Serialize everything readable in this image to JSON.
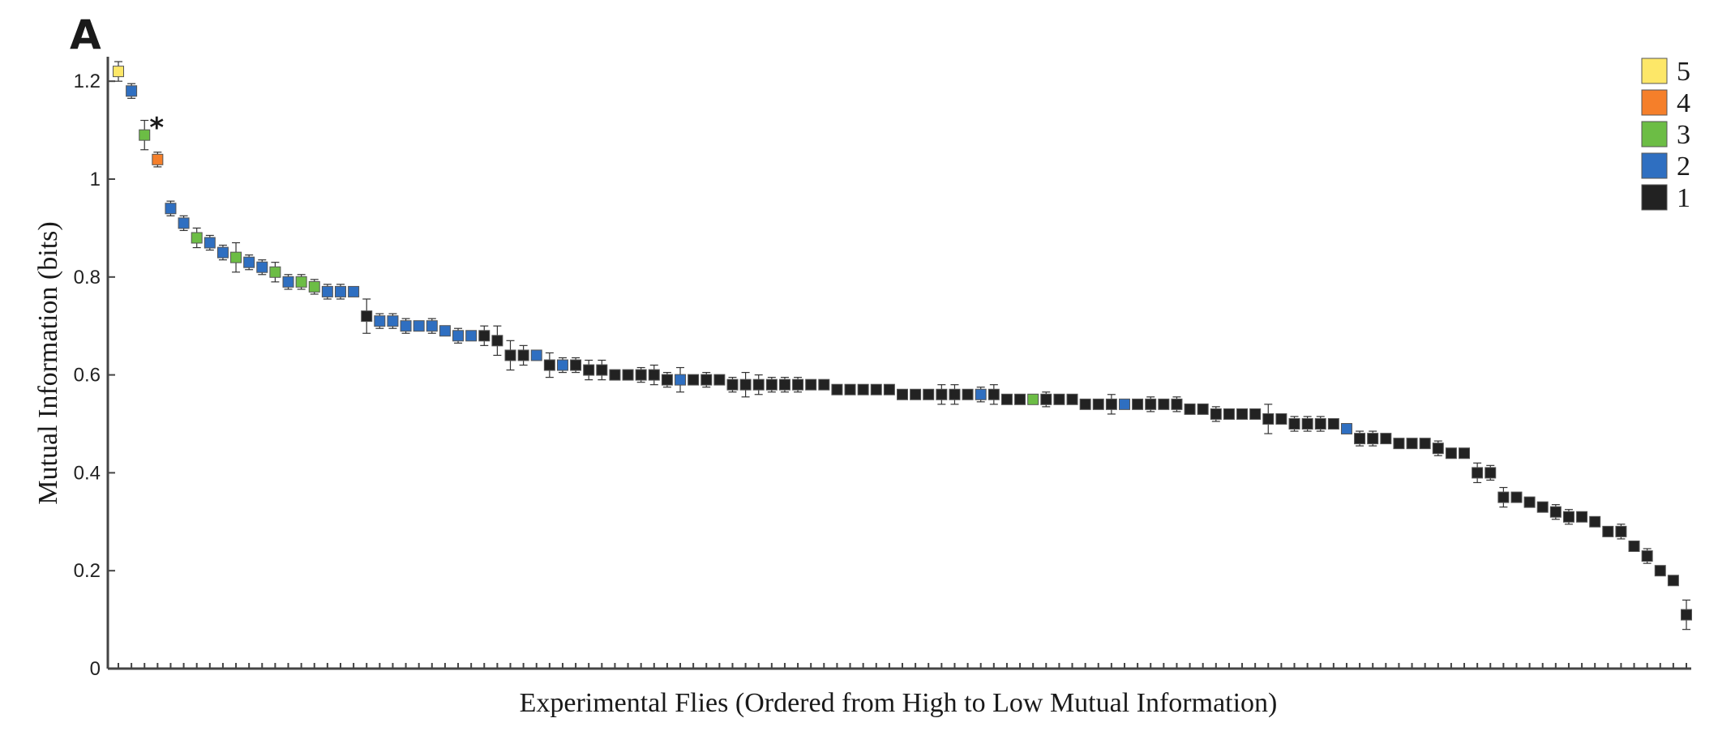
{
  "chart_data": {
    "type": "scatter",
    "panel_label": "A",
    "xlabel": "Experimental Flies (Ordered from High to Low Mutual Information)",
    "ylabel": "Mutual Information (bits)",
    "ylim": [
      0,
      1.25
    ],
    "yticks": [
      {
        "value": 0,
        "label": "0"
      },
      {
        "value": 0.2,
        "label": "0.2"
      },
      {
        "value": 0.4,
        "label": "0.4"
      },
      {
        "value": 0.6,
        "label": "0.6"
      },
      {
        "value": 0.8,
        "label": "0.8"
      },
      {
        "value": 1,
        "label": "1"
      },
      {
        "value": 1.2,
        "label": "1.2"
      }
    ],
    "legend": [
      {
        "label": "5",
        "color": "#fde768"
      },
      {
        "label": "4",
        "color": "#f57f2a"
      },
      {
        "label": "3",
        "color": "#6cbd45"
      },
      {
        "label": "2",
        "color": "#2f6fc1"
      },
      {
        "label": "1",
        "color": "#222222"
      }
    ],
    "colors": {
      "5": "#fde768",
      "4": "#f57f2a",
      "3": "#6cbd45",
      "2": "#2f6fc1",
      "1": "#222222"
    },
    "annotation": {
      "text": "*",
      "index": 3
    },
    "points": [
      {
        "y": 1.22,
        "err": 0.02,
        "g": 5
      },
      {
        "y": 1.18,
        "err": 0.015,
        "g": 2
      },
      {
        "y": 1.09,
        "err": 0.03,
        "g": 3
      },
      {
        "y": 1.04,
        "err": 0.015,
        "g": 4
      },
      {
        "y": 0.94,
        "err": 0.015,
        "g": 2
      },
      {
        "y": 0.91,
        "err": 0.015,
        "g": 2
      },
      {
        "y": 0.88,
        "err": 0.02,
        "g": 3
      },
      {
        "y": 0.87,
        "err": 0.015,
        "g": 2
      },
      {
        "y": 0.85,
        "err": 0.015,
        "g": 2
      },
      {
        "y": 0.84,
        "err": 0.03,
        "g": 3
      },
      {
        "y": 0.83,
        "err": 0.015,
        "g": 2
      },
      {
        "y": 0.82,
        "err": 0.015,
        "g": 2
      },
      {
        "y": 0.81,
        "err": 0.02,
        "g": 3
      },
      {
        "y": 0.79,
        "err": 0.015,
        "g": 2
      },
      {
        "y": 0.79,
        "err": 0.015,
        "g": 3
      },
      {
        "y": 0.78,
        "err": 0.015,
        "g": 3
      },
      {
        "y": 0.77,
        "err": 0.015,
        "g": 2
      },
      {
        "y": 0.77,
        "err": 0.015,
        "g": 2
      },
      {
        "y": 0.77,
        "err": 0.01,
        "g": 2
      },
      {
        "y": 0.72,
        "err": 0.035,
        "g": 1
      },
      {
        "y": 0.71,
        "err": 0.015,
        "g": 2
      },
      {
        "y": 0.71,
        "err": 0.015,
        "g": 2
      },
      {
        "y": 0.7,
        "err": 0.015,
        "g": 2
      },
      {
        "y": 0.7,
        "err": 0.01,
        "g": 2
      },
      {
        "y": 0.7,
        "err": 0.015,
        "g": 2
      },
      {
        "y": 0.69,
        "err": 0.01,
        "g": 2
      },
      {
        "y": 0.68,
        "err": 0.015,
        "g": 2
      },
      {
        "y": 0.68,
        "err": 0.01,
        "g": 2
      },
      {
        "y": 0.68,
        "err": 0.02,
        "g": 1
      },
      {
        "y": 0.67,
        "err": 0.03,
        "g": 1
      },
      {
        "y": 0.64,
        "err": 0.03,
        "g": 1
      },
      {
        "y": 0.64,
        "err": 0.02,
        "g": 1
      },
      {
        "y": 0.64,
        "err": 0.01,
        "g": 2
      },
      {
        "y": 0.62,
        "err": 0.025,
        "g": 1
      },
      {
        "y": 0.62,
        "err": 0.015,
        "g": 2
      },
      {
        "y": 0.62,
        "err": 0.015,
        "g": 1
      },
      {
        "y": 0.61,
        "err": 0.02,
        "g": 1
      },
      {
        "y": 0.61,
        "err": 0.02,
        "g": 1
      },
      {
        "y": 0.6,
        "err": 0.01,
        "g": 1
      },
      {
        "y": 0.6,
        "err": 0.01,
        "g": 1
      },
      {
        "y": 0.6,
        "err": 0.015,
        "g": 1
      },
      {
        "y": 0.6,
        "err": 0.02,
        "g": 1
      },
      {
        "y": 0.59,
        "err": 0.015,
        "g": 1
      },
      {
        "y": 0.59,
        "err": 0.025,
        "g": 2
      },
      {
        "y": 0.59,
        "err": 0.01,
        "g": 1
      },
      {
        "y": 0.59,
        "err": 0.015,
        "g": 1
      },
      {
        "y": 0.59,
        "err": 0.01,
        "g": 1
      },
      {
        "y": 0.58,
        "err": 0.015,
        "g": 1
      },
      {
        "y": 0.58,
        "err": 0.025,
        "g": 1
      },
      {
        "y": 0.58,
        "err": 0.02,
        "g": 1
      },
      {
        "y": 0.58,
        "err": 0.015,
        "g": 1
      },
      {
        "y": 0.58,
        "err": 0.015,
        "g": 1
      },
      {
        "y": 0.58,
        "err": 0.015,
        "g": 1
      },
      {
        "y": 0.58,
        "err": 0.01,
        "g": 1
      },
      {
        "y": 0.58,
        "err": 0.01,
        "g": 1
      },
      {
        "y": 0.57,
        "err": 0.01,
        "g": 1
      },
      {
        "y": 0.57,
        "err": 0.01,
        "g": 1
      },
      {
        "y": 0.57,
        "err": 0.01,
        "g": 1
      },
      {
        "y": 0.57,
        "err": 0.01,
        "g": 1
      },
      {
        "y": 0.57,
        "err": 0.01,
        "g": 1
      },
      {
        "y": 0.56,
        "err": 0.01,
        "g": 1
      },
      {
        "y": 0.56,
        "err": 0.01,
        "g": 1
      },
      {
        "y": 0.56,
        "err": 0.01,
        "g": 1
      },
      {
        "y": 0.56,
        "err": 0.02,
        "g": 1
      },
      {
        "y": 0.56,
        "err": 0.02,
        "g": 1
      },
      {
        "y": 0.56,
        "err": 0.01,
        "g": 1
      },
      {
        "y": 0.56,
        "err": 0.015,
        "g": 2
      },
      {
        "y": 0.56,
        "err": 0.02,
        "g": 1
      },
      {
        "y": 0.55,
        "err": 0.01,
        "g": 1
      },
      {
        "y": 0.55,
        "err": 0.01,
        "g": 1
      },
      {
        "y": 0.55,
        "err": 0.01,
        "g": 3
      },
      {
        "y": 0.55,
        "err": 0.015,
        "g": 1
      },
      {
        "y": 0.55,
        "err": 0.01,
        "g": 1
      },
      {
        "y": 0.55,
        "err": 0.01,
        "g": 1
      },
      {
        "y": 0.54,
        "err": 0.01,
        "g": 1
      },
      {
        "y": 0.54,
        "err": 0.01,
        "g": 1
      },
      {
        "y": 0.54,
        "err": 0.02,
        "g": 1
      },
      {
        "y": 0.54,
        "err": 0.01,
        "g": 2
      },
      {
        "y": 0.54,
        "err": 0.01,
        "g": 1
      },
      {
        "y": 0.54,
        "err": 0.015,
        "g": 1
      },
      {
        "y": 0.54,
        "err": 0.01,
        "g": 1
      },
      {
        "y": 0.54,
        "err": 0.015,
        "g": 1
      },
      {
        "y": 0.53,
        "err": 0.01,
        "g": 1
      },
      {
        "y": 0.53,
        "err": 0.01,
        "g": 1
      },
      {
        "y": 0.52,
        "err": 0.015,
        "g": 1
      },
      {
        "y": 0.52,
        "err": 0.01,
        "g": 1
      },
      {
        "y": 0.52,
        "err": 0.01,
        "g": 1
      },
      {
        "y": 0.52,
        "err": 0.01,
        "g": 1
      },
      {
        "y": 0.51,
        "err": 0.03,
        "g": 1
      },
      {
        "y": 0.51,
        "err": 0.01,
        "g": 1
      },
      {
        "y": 0.5,
        "err": 0.015,
        "g": 1
      },
      {
        "y": 0.5,
        "err": 0.015,
        "g": 1
      },
      {
        "y": 0.5,
        "err": 0.015,
        "g": 1
      },
      {
        "y": 0.5,
        "err": 0.01,
        "g": 1
      },
      {
        "y": 0.49,
        "err": 0.01,
        "g": 2
      },
      {
        "y": 0.47,
        "err": 0.015,
        "g": 1
      },
      {
        "y": 0.47,
        "err": 0.015,
        "g": 1
      },
      {
        "y": 0.47,
        "err": 0.01,
        "g": 1
      },
      {
        "y": 0.46,
        "err": 0.01,
        "g": 1
      },
      {
        "y": 0.46,
        "err": 0.01,
        "g": 1
      },
      {
        "y": 0.46,
        "err": 0.01,
        "g": 1
      },
      {
        "y": 0.45,
        "err": 0.015,
        "g": 1
      },
      {
        "y": 0.44,
        "err": 0.01,
        "g": 1
      },
      {
        "y": 0.44,
        "err": 0.01,
        "g": 1
      },
      {
        "y": 0.4,
        "err": 0.02,
        "g": 1
      },
      {
        "y": 0.4,
        "err": 0.015,
        "g": 1
      },
      {
        "y": 0.35,
        "err": 0.02,
        "g": 1
      },
      {
        "y": 0.35,
        "err": 0.01,
        "g": 1
      },
      {
        "y": 0.34,
        "err": 0.01,
        "g": 1
      },
      {
        "y": 0.33,
        "err": 0.01,
        "g": 1
      },
      {
        "y": 0.32,
        "err": 0.015,
        "g": 1
      },
      {
        "y": 0.31,
        "err": 0.015,
        "g": 1
      },
      {
        "y": 0.31,
        "err": 0.01,
        "g": 1
      },
      {
        "y": 0.3,
        "err": 0.01,
        "g": 1
      },
      {
        "y": 0.28,
        "err": 0.01,
        "g": 1
      },
      {
        "y": 0.28,
        "err": 0.015,
        "g": 1
      },
      {
        "y": 0.25,
        "err": 0.01,
        "g": 1
      },
      {
        "y": 0.23,
        "err": 0.015,
        "g": 1
      },
      {
        "y": 0.2,
        "err": 0.01,
        "g": 1
      },
      {
        "y": 0.18,
        "err": 0.01,
        "g": 1
      },
      {
        "y": 0.11,
        "err": 0.03,
        "g": 1
      }
    ]
  }
}
